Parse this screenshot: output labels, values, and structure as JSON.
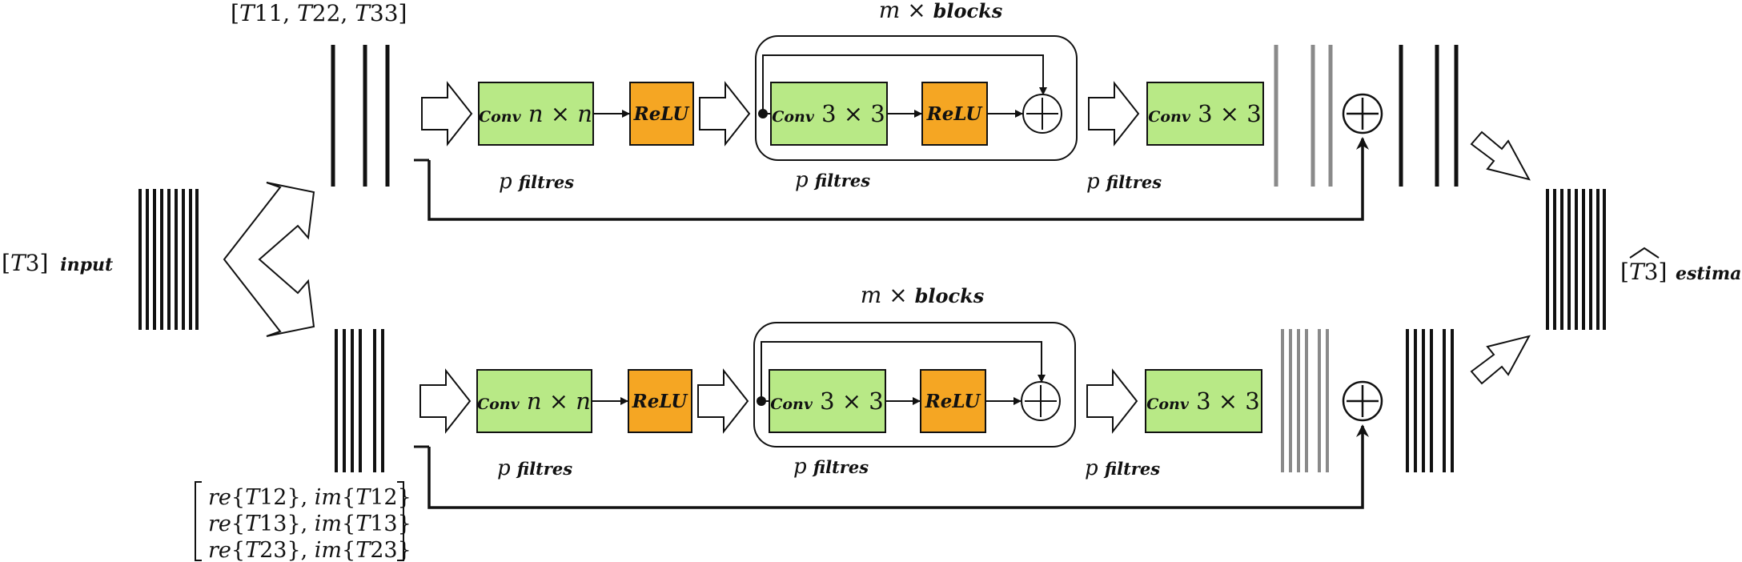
{
  "input": {
    "prefix": "[",
    "var": "T",
    "num": "3",
    "suffix": "]",
    "word": "input"
  },
  "output": {
    "var": "T",
    "num": "3",
    "word": "estimate"
  },
  "top_channels_label": {
    "open": "[",
    "v1": "T",
    "n1": "11",
    "v2": "T",
    "n2": "22",
    "v3": "T",
    "n3": "33",
    "close": "]",
    "sep": ", "
  },
  "bottom_matrix": {
    "rows": [
      {
        "a_fn": "re",
        "a_var": "T",
        "a_num": "12",
        "b_fn": "im",
        "b_var": "T",
        "b_num": "12"
      },
      {
        "a_fn": "re",
        "a_var": "T",
        "a_num": "13",
        "b_fn": "im",
        "b_var": "T",
        "b_num": "13"
      },
      {
        "a_fn": "re",
        "a_var": "T",
        "a_num": "23",
        "b_fn": "im",
        "b_var": "T",
        "b_num": "23"
      }
    ]
  },
  "branches": [
    {
      "conv1": {
        "word": "Conv",
        "size": "n × n"
      },
      "relu": "ReLU",
      "block": {
        "conv_word": "Conv",
        "conv_size": "3 × 3",
        "relu": "ReLU",
        "repeat": "m ×",
        "repeat_word": "blocks"
      },
      "conv3": {
        "word": "Conv",
        "size": "3 × 3"
      },
      "filters": {
        "var": "p",
        "word": "filtres"
      }
    },
    {
      "conv1": {
        "word": "Conv",
        "size": "n × n"
      },
      "relu": "ReLU",
      "block": {
        "conv_word": "Conv",
        "conv_size": "3 × 3",
        "relu": "ReLU",
        "repeat": "m ×",
        "repeat_word": "blocks"
      },
      "conv3": {
        "word": "Conv",
        "size": "3 × 3"
      },
      "filters": {
        "var": "p",
        "word": "filtres"
      }
    }
  ],
  "colors": {
    "conv": "#b8e986",
    "relu": "#f5a623",
    "line": "#111111",
    "grey": "#8a8a8a"
  }
}
